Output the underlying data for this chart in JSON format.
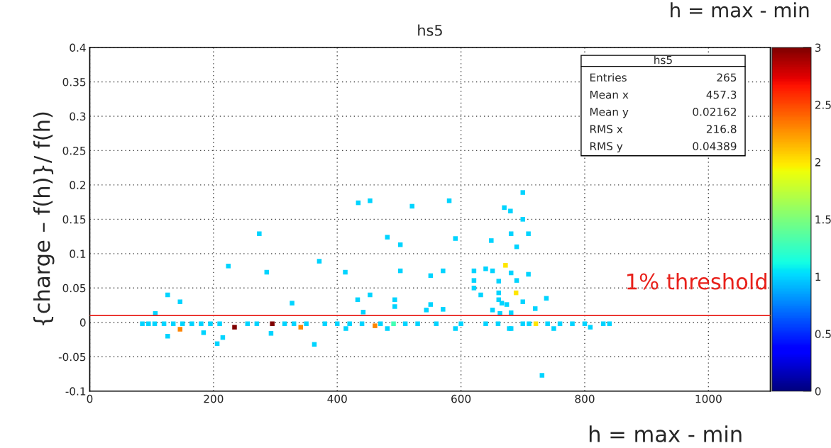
{
  "chart_data": {
    "type": "scatter",
    "title": "hs5",
    "xlabel": "h = max - min",
    "ylabel": "{charge – f(h)}/ f(h)",
    "marker": "square",
    "grid": true,
    "xlim": [
      0,
      1100
    ],
    "xticks": [
      0,
      200,
      400,
      600,
      800,
      1000
    ],
    "ylim": [
      -0.1,
      0.4
    ],
    "yticks": [
      -0.1,
      -0.05,
      0,
      0.05,
      0.1,
      0.15,
      0.2,
      0.25,
      0.3,
      0.35,
      0.4
    ],
    "clim": [
      0,
      3
    ],
    "cticks": [
      0,
      0.5,
      1,
      1.5,
      2,
      2.5,
      3
    ],
    "ref_lines": [
      {
        "axis": "y",
        "value": 0.01,
        "label": "1% threshold",
        "color": "#e8211b"
      }
    ],
    "annotations": [
      "h = max - min",
      "hs5",
      "Entries",
      "265",
      "Mean x",
      "457.3",
      "Mean y",
      "0.02162",
      "RMS x",
      "216.8",
      "RMS y",
      "0.04389"
    ],
    "series": [
      {
        "x": [
          274,
          224,
          286,
          126,
          146,
          327,
          106,
          126,
          184,
          215,
          206,
          293,
          363,
          146,
          234,
          295,
          341,
          434,
          453,
          521,
          581,
          700,
          670,
          680,
          481,
          502,
          591,
          649,
          681,
          709,
          690,
          371,
          413,
          502,
          551,
          571,
          621,
          640,
          651,
          681,
          709,
          672,
          621,
          661,
          690,
          621,
          433,
          453,
          493,
          493,
          551,
          544,
          571,
          442,
          632,
          661,
          661,
          666,
          674,
          689,
          700,
          720,
          651,
          663,
          681,
          481,
          591,
          414,
          681,
          731,
          461,
          491,
          738,
          750,
          809,
          830,
          678,
          700,
          721,
          85,
          95,
          105,
          120,
          135,
          150,
          165,
          180,
          195,
          210,
          255,
          270,
          315,
          330,
          350,
          380,
          400,
          420,
          440,
          470,
          510,
          530,
          560,
          600,
          640,
          660,
          700,
          710,
          740,
          760,
          780,
          800,
          840
        ],
        "values": [
          0.129,
          0.082,
          0.073,
          0.04,
          0.03,
          0.028,
          0.013,
          -0.02,
          -0.015,
          -0.022,
          -0.031,
          -0.016,
          -0.032,
          -0.01,
          -0.007,
          -0.002,
          -0.007,
          0.174,
          0.177,
          0.169,
          0.177,
          0.189,
          0.167,
          0.162,
          0.124,
          0.113,
          0.122,
          0.119,
          0.129,
          0.129,
          0.11,
          0.089,
          0.073,
          0.075,
          0.068,
          0.075,
          0.075,
          0.078,
          0.075,
          0.072,
          0.07,
          0.083,
          0.061,
          0.06,
          0.061,
          0.05,
          0.033,
          0.04,
          0.033,
          0.023,
          0.026,
          0.018,
          0.019,
          0.015,
          0.04,
          0.043,
          0.033,
          0.028,
          0.026,
          0.043,
          0.03,
          0.02,
          0.018,
          0.013,
          0.014,
          -0.009,
          -0.009,
          -0.009,
          -0.009,
          -0.077,
          -0.005,
          -0.002,
          0.035,
          -0.009,
          -0.007,
          -0.002,
          -0.009,
          0.15,
          -0.002,
          -0.002,
          -0.002,
          -0.002,
          -0.002,
          -0.002,
          -0.002,
          -0.002,
          -0.002,
          -0.002,
          -0.002,
          -0.002,
          -0.002,
          -0.002,
          -0.002,
          -0.002,
          -0.002,
          -0.002,
          -0.002,
          -0.002,
          -0.002,
          -0.002,
          -0.002,
          -0.002,
          -0.002,
          -0.002,
          -0.002,
          -0.002,
          -0.002,
          -0.002,
          -0.002,
          -0.002,
          -0.002,
          -0.002
        ],
        "cvalues": [
          1,
          1,
          1,
          1,
          1,
          1,
          1,
          1,
          1,
          1,
          1,
          1,
          1,
          2.3,
          3,
          3,
          2.3,
          1,
          1,
          1,
          1,
          1,
          1,
          1,
          1,
          1,
          1,
          1,
          1,
          1,
          1,
          1,
          1,
          1,
          1,
          1,
          1,
          1,
          1,
          1,
          1,
          2,
          1,
          1,
          1,
          1,
          1,
          1,
          1,
          1,
          1,
          1,
          1,
          1,
          1,
          1,
          1,
          1,
          1,
          2,
          1,
          1,
          1,
          1,
          1,
          1,
          1,
          1,
          1,
          1,
          2.3,
          1.3,
          1,
          1,
          1,
          1,
          1,
          1,
          2,
          1,
          1,
          1,
          1,
          1,
          1,
          1,
          1,
          1,
          1,
          1,
          1,
          1,
          1,
          1,
          1,
          1,
          1,
          1,
          1,
          1,
          1,
          1,
          1,
          1,
          1,
          1,
          1,
          1,
          1,
          1,
          1,
          1
        ]
      }
    ]
  }
}
